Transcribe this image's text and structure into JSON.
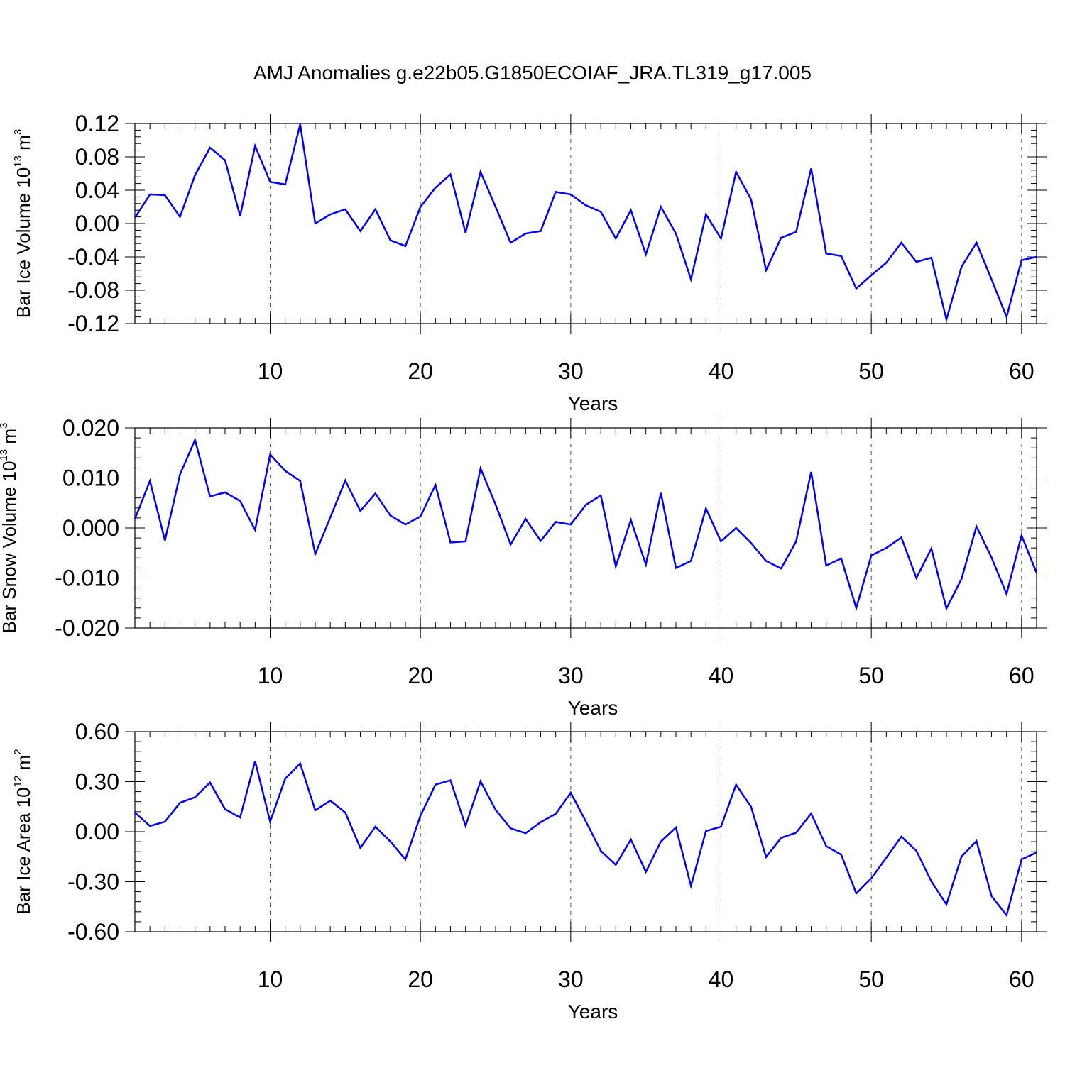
{
  "title": "AMJ Anomalies g.e22b05.G1850ECOIAF_JRA.TL319_g17.005",
  "colors": {
    "line": "#0000ff",
    "axis": "#000000",
    "grid": "#555555"
  },
  "chart_data": [
    {
      "type": "line",
      "ylabel": {
        "prefix": "Bar Ice Volume 10",
        "exp": "13",
        "unit": " m",
        "unit_exp": "3"
      },
      "xlabel": "Years",
      "xlim": [
        1,
        61
      ],
      "ylim": [
        -0.12,
        0.12
      ],
      "xticks": [
        10,
        20,
        30,
        40,
        50,
        60
      ],
      "xtick_labels": [
        "10",
        "20",
        "30",
        "40",
        "50",
        "60"
      ],
      "yticks": [
        -0.12,
        -0.08,
        -0.04,
        0.0,
        0.04,
        0.08,
        0.12
      ],
      "ytick_labels": [
        "-0.12",
        "-0.08",
        "-0.04",
        "0.00",
        "0.04",
        "0.08",
        "0.12"
      ],
      "yminor_step": 0.008,
      "x": [
        1,
        2,
        3,
        4,
        5,
        6,
        7,
        8,
        9,
        10,
        11,
        12,
        13,
        14,
        15,
        16,
        17,
        18,
        19,
        20,
        21,
        22,
        23,
        24,
        25,
        26,
        27,
        28,
        29,
        30,
        31,
        32,
        33,
        34,
        35,
        36,
        37,
        38,
        39,
        40,
        41,
        42,
        43,
        44,
        45,
        46,
        47,
        48,
        49,
        50,
        51,
        52,
        53,
        54,
        55,
        56,
        57,
        58,
        59,
        60,
        61
      ],
      "series": [
        {
          "name": "anomaly",
          "values": [
            0.007,
            0.035,
            0.034,
            0.008,
            0.058,
            0.091,
            0.076,
            0.009,
            0.093,
            0.05,
            0.047,
            0.119,
            0.0,
            0.011,
            0.017,
            -0.009,
            0.017,
            -0.02,
            -0.027,
            0.02,
            0.043,
            0.059,
            -0.011,
            0.062,
            0.02,
            -0.023,
            -0.012,
            -0.009,
            0.038,
            0.035,
            0.022,
            0.014,
            -0.018,
            0.016,
            -0.037,
            0.02,
            -0.012,
            -0.067,
            0.011,
            -0.018,
            0.062,
            0.029,
            -0.056,
            -0.017,
            -0.01,
            0.066,
            -0.036,
            -0.039,
            -0.078,
            -0.062,
            -0.047,
            -0.023,
            -0.046,
            -0.041,
            -0.115,
            -0.052,
            -0.023,
            -0.067,
            -0.112,
            -0.044,
            -0.04
          ]
        }
      ]
    },
    {
      "type": "line",
      "ylabel": {
        "prefix": "Bar Snow Volume 10",
        "exp": "13",
        "unit": " m",
        "unit_exp": "3"
      },
      "xlabel": "Years",
      "xlim": [
        1,
        61
      ],
      "ylim": [
        -0.02,
        0.02
      ],
      "xticks": [
        10,
        20,
        30,
        40,
        50,
        60
      ],
      "xtick_labels": [
        "10",
        "20",
        "30",
        "40",
        "50",
        "60"
      ],
      "yticks": [
        -0.02,
        -0.01,
        0.0,
        0.01,
        0.02
      ],
      "ytick_labels": [
        "-0.020",
        "-0.010",
        "0.000",
        "0.010",
        "0.020"
      ],
      "yminor_step": 0.002,
      "x": [
        1,
        2,
        3,
        4,
        5,
        6,
        7,
        8,
        9,
        10,
        11,
        12,
        13,
        14,
        15,
        16,
        17,
        18,
        19,
        20,
        21,
        22,
        23,
        24,
        25,
        26,
        27,
        28,
        29,
        30,
        31,
        32,
        33,
        34,
        35,
        36,
        37,
        38,
        39,
        40,
        41,
        42,
        43,
        44,
        45,
        46,
        47,
        48,
        49,
        50,
        51,
        52,
        53,
        54,
        55,
        56,
        57,
        58,
        59,
        60,
        61
      ],
      "series": [
        {
          "name": "anomaly",
          "values": [
            0.0018,
            0.0094,
            -0.0025,
            0.0107,
            0.0176,
            0.0063,
            0.0071,
            0.0054,
            -0.0004,
            0.0147,
            0.0114,
            0.0094,
            -0.0052,
            0.0021,
            0.0095,
            0.0034,
            0.0069,
            0.0025,
            0.0007,
            0.0023,
            0.0086,
            -0.0029,
            -0.0027,
            0.0119,
            0.0047,
            -0.0033,
            0.0018,
            -0.0026,
            0.0012,
            0.0007,
            0.0046,
            0.0065,
            -0.0077,
            0.0016,
            -0.0073,
            0.007,
            -0.008,
            -0.0066,
            0.0039,
            -0.0027,
            0.0,
            -0.003,
            -0.0066,
            -0.0081,
            -0.0027,
            0.0112,
            -0.0075,
            -0.0061,
            -0.016,
            -0.0055,
            -0.004,
            -0.0019,
            -0.01,
            -0.0041,
            -0.0161,
            -0.0102,
            0.0003,
            -0.0059,
            -0.0132,
            -0.0015,
            -0.009
          ]
        }
      ]
    },
    {
      "type": "line",
      "ylabel": {
        "prefix": "Bar Ice Area 10",
        "exp": "12",
        "unit": " m",
        "unit_exp": "2"
      },
      "xlabel": "Years",
      "xlim": [
        1,
        61
      ],
      "ylim": [
        -0.6,
        0.6
      ],
      "xticks": [
        10,
        20,
        30,
        40,
        50,
        60
      ],
      "xtick_labels": [
        "10",
        "20",
        "30",
        "40",
        "50",
        "60"
      ],
      "yticks": [
        -0.6,
        -0.3,
        0.0,
        0.3,
        0.6
      ],
      "ytick_labels": [
        "-0.60",
        "-0.30",
        "0.00",
        "0.30",
        "0.60"
      ],
      "yminor_step": 0.06,
      "x": [
        1,
        2,
        3,
        4,
        5,
        6,
        7,
        8,
        9,
        10,
        11,
        12,
        13,
        14,
        15,
        16,
        17,
        18,
        19,
        20,
        21,
        22,
        23,
        24,
        25,
        26,
        27,
        28,
        29,
        30,
        31,
        32,
        33,
        34,
        35,
        36,
        37,
        38,
        39,
        40,
        41,
        42,
        43,
        44,
        45,
        46,
        47,
        48,
        49,
        50,
        51,
        52,
        53,
        54,
        55,
        56,
        57,
        58,
        59,
        60,
        61
      ],
      "series": [
        {
          "name": "anomaly",
          "values": [
            0.115,
            0.034,
            0.06,
            0.173,
            0.207,
            0.295,
            0.135,
            0.085,
            0.424,
            0.06,
            0.318,
            0.409,
            0.128,
            0.186,
            0.115,
            -0.098,
            0.03,
            -0.059,
            -0.166,
            0.096,
            0.282,
            0.308,
            0.035,
            0.302,
            0.131,
            0.02,
            -0.009,
            0.057,
            0.107,
            0.234,
            0.063,
            -0.115,
            -0.199,
            -0.047,
            -0.241,
            -0.059,
            0.025,
            -0.325,
            0.004,
            0.03,
            0.282,
            0.15,
            -0.152,
            -0.037,
            -0.006,
            0.109,
            -0.087,
            -0.138,
            -0.37,
            -0.279,
            -0.156,
            -0.03,
            -0.115,
            -0.298,
            -0.436,
            -0.149,
            -0.056,
            -0.386,
            -0.501,
            -0.166,
            -0.125
          ]
        }
      ]
    }
  ]
}
